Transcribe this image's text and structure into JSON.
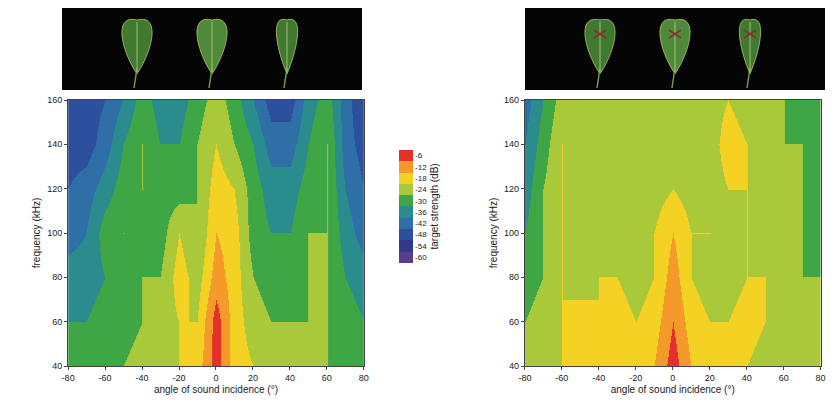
{
  "chart_data": [
    {
      "type": "heatmap",
      "x_label": "angle of sound incidence (°)",
      "y_label": "frequency (kHz)",
      "xlim": [
        -80,
        80
      ],
      "xticks": [
        -80,
        -60,
        -40,
        -20,
        0,
        20,
        40,
        60,
        80
      ],
      "ylim": [
        40,
        160
      ],
      "yticks": [
        40,
        60,
        80,
        100,
        120,
        140,
        160
      ],
      "x": [
        -80,
        -70,
        -60,
        -50,
        -40,
        -30,
        -20,
        -10,
        0,
        10,
        20,
        30,
        40,
        50,
        60,
        70,
        80
      ],
      "y": [
        40,
        60,
        80,
        100,
        120,
        140,
        160
      ],
      "z": [
        [
          -30,
          -30,
          -27,
          -27,
          -24,
          -24,
          -21,
          -18,
          -6,
          -18,
          -21,
          -24,
          -27,
          -27,
          -27,
          -30,
          -30
        ],
        [
          -33,
          -33,
          -30,
          -30,
          -27,
          -24,
          -21,
          -21,
          -6,
          -18,
          -24,
          -27,
          -27,
          -27,
          -27,
          -30,
          -33
        ],
        [
          -36,
          -36,
          -33,
          -30,
          -27,
          -27,
          -18,
          -24,
          -12,
          -18,
          -27,
          -30,
          -30,
          -27,
          -27,
          -33,
          -36
        ],
        [
          -42,
          -39,
          -30,
          -27,
          -30,
          -30,
          -21,
          -27,
          -15,
          -18,
          -30,
          -33,
          -33,
          -27,
          -27,
          -36,
          -42
        ],
        [
          -45,
          -42,
          -36,
          -30,
          -27,
          -30,
          -30,
          -27,
          -18,
          -21,
          -30,
          -36,
          -36,
          -30,
          -27,
          -39,
          -45
        ],
        [
          -48,
          -48,
          -42,
          -33,
          -27,
          -33,
          -33,
          -27,
          -21,
          -27,
          -33,
          -42,
          -42,
          -33,
          -27,
          -42,
          -48
        ],
        [
          -51,
          -48,
          -45,
          -39,
          -30,
          -36,
          -36,
          -30,
          -24,
          -30,
          -39,
          -48,
          -48,
          -36,
          -30,
          -42,
          -51
        ]
      ],
      "colorbar": {
        "title": "target strength (dB)",
        "range": [
          -63,
          -3
        ],
        "ticks": [
          -60,
          -54,
          -48,
          -42,
          -36,
          -30,
          -24,
          -18,
          -12,
          -6
        ],
        "colors": [
          "#5a3c8c",
          "#2f3b8a",
          "#2c4f9e",
          "#2f6fa8",
          "#2a8c8c",
          "#3fa646",
          "#a9c93a",
          "#f4d224",
          "#f39a2b",
          "#e5302a"
        ]
      }
    },
    {
      "type": "heatmap",
      "x_label": "angle of sound incidence (°)",
      "y_label": "frequency (kHz)",
      "xlim": [
        -80,
        80
      ],
      "xticks": [
        -80,
        -60,
        -40,
        -20,
        0,
        20,
        40,
        60,
        80
      ],
      "ylim": [
        40,
        160
      ],
      "yticks": [
        40,
        60,
        80,
        100,
        120,
        140,
        160
      ],
      "x": [
        -80,
        -70,
        -60,
        -50,
        -40,
        -30,
        -20,
        -10,
        0,
        10,
        20,
        30,
        40,
        50,
        60,
        70,
        80
      ],
      "y": [
        40,
        60,
        80,
        100,
        120,
        140,
        160
      ],
      "z": [
        [
          -27,
          -24,
          -21,
          -21,
          -21,
          -18,
          -18,
          -15,
          -6,
          -15,
          -18,
          -21,
          -21,
          -24,
          -24,
          -24,
          -27
        ],
        [
          -27,
          -24,
          -21,
          -18,
          -21,
          -18,
          -21,
          -18,
          -9,
          -18,
          -21,
          -21,
          -18,
          -21,
          -24,
          -24,
          -27
        ],
        [
          -30,
          -27,
          -21,
          -24,
          -21,
          -21,
          -24,
          -21,
          -12,
          -21,
          -24,
          -24,
          -21,
          -21,
          -24,
          -27,
          -27
        ],
        [
          -33,
          -27,
          -21,
          -24,
          -24,
          -24,
          -24,
          -21,
          -15,
          -21,
          -21,
          -24,
          -21,
          -24,
          -24,
          -27,
          -30
        ],
        [
          -36,
          -27,
          -21,
          -24,
          -27,
          -24,
          -24,
          -24,
          -21,
          -24,
          -24,
          -21,
          -21,
          -24,
          -27,
          -27,
          -30
        ],
        [
          -39,
          -30,
          -21,
          -24,
          -27,
          -27,
          -27,
          -24,
          -24,
          -27,
          -24,
          -18,
          -21,
          -24,
          -27,
          -27,
          -30
        ],
        [
          -42,
          -33,
          -24,
          -27,
          -27,
          -27,
          -27,
          -27,
          -27,
          -27,
          -24,
          -21,
          -24,
          -27,
          -27,
          -30,
          -30
        ]
      ]
    }
  ]
}
